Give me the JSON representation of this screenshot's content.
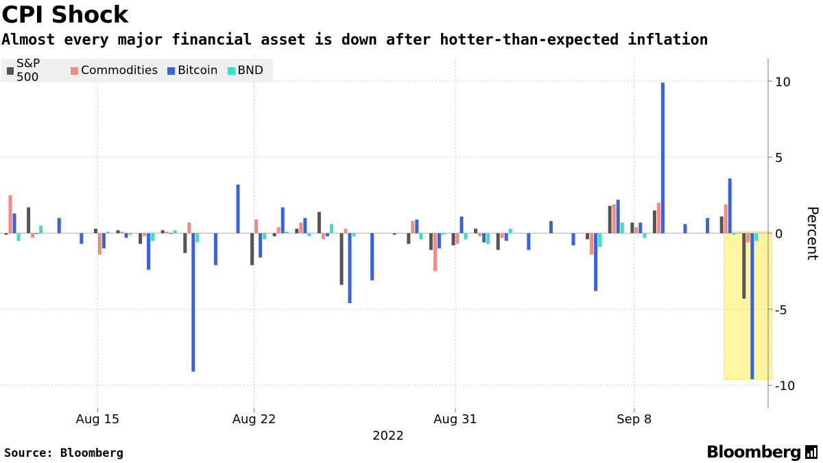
{
  "header": {
    "title": "CPI Shock",
    "subtitle": "Almost every major financial asset is down after hotter-than-expected inflation"
  },
  "footer": {
    "source": "Source: Bloomberg",
    "brand": "Bloomberg"
  },
  "chart_data": {
    "type": "bar",
    "title": "CPI Shock",
    "subtitle": "Almost every major financial asset is down after hotter-than-expected inflation",
    "ylabel": "Percent",
    "xlabel": "2022",
    "ylim": [
      -11.5,
      11.5
    ],
    "yticks": [
      10,
      5,
      0,
      -5,
      -10
    ],
    "ytick_labels": [
      "10",
      "5",
      "0",
      "-5",
      "-10"
    ],
    "x_tick_labels": [
      {
        "label": "Aug 15",
        "index": 4
      },
      {
        "label": "Aug 22",
        "index": 11
      },
      {
        "label": "Aug 31",
        "index": 20
      },
      {
        "label": "Sep 8",
        "index": 28
      }
    ],
    "year_label": "2022",
    "legend_position": "top-left",
    "grid": true,
    "categories": [
      "Aug 11",
      "Aug 12",
      "Aug 13",
      "Aug 14",
      "Aug 15",
      "Aug 16",
      "Aug 17",
      "Aug 18",
      "Aug 19",
      "Aug 20",
      "Aug 21",
      "Aug 22",
      "Aug 23",
      "Aug 24",
      "Aug 25",
      "Aug 26",
      "Aug 27",
      "Aug 28",
      "Aug 29",
      "Aug 30",
      "Aug 31",
      "Sep 1",
      "Sep 2",
      "Sep 3",
      "Sep 4",
      "Sep 5",
      "Sep 6",
      "Sep 7",
      "Sep 8",
      "Sep 9",
      "Sep 10",
      "Sep 11",
      "Sep 12",
      "Sep 13"
    ],
    "series": [
      {
        "name": "S&P 500",
        "color": "#555555",
        "values": [
          -0.1,
          1.7,
          null,
          null,
          0.3,
          0.2,
          -0.7,
          0.2,
          -1.3,
          null,
          null,
          -2.1,
          -0.2,
          0.3,
          1.4,
          -3.4,
          null,
          null,
          -0.7,
          -1.1,
          -0.8,
          0.3,
          -1.1,
          null,
          null,
          null,
          -0.4,
          1.8,
          0.7,
          1.5,
          null,
          null,
          1.1,
          -4.3
        ]
      },
      {
        "name": "Commodities",
        "color": "#f28b82",
        "values": [
          2.5,
          -0.3,
          null,
          null,
          -1.4,
          0.1,
          -0.2,
          0.1,
          0.7,
          null,
          null,
          0.9,
          0.4,
          0.7,
          -0.4,
          0.3,
          null,
          null,
          0.8,
          -2.5,
          -0.7,
          -0.2,
          -0.3,
          null,
          null,
          null,
          -1.4,
          1.9,
          0.4,
          2.0,
          null,
          null,
          1.9,
          -0.6
        ]
      },
      {
        "name": "Bitcoin",
        "color": "#3b63d8",
        "values": [
          1.3,
          0.0,
          1.0,
          -0.7,
          -1.0,
          -0.3,
          -2.4,
          0.0,
          -9.1,
          -2.1,
          3.2,
          -1.6,
          1.7,
          1.0,
          -0.2,
          -4.6,
          -3.1,
          -0.1,
          0.9,
          -1.0,
          1.1,
          -0.6,
          -0.5,
          -1.1,
          0.8,
          -0.8,
          -3.8,
          2.2,
          0.7,
          9.9,
          0.6,
          1.0,
          3.6,
          -9.6
        ]
      },
      {
        "name": "BND",
        "color": "#3ae0c0",
        "values": [
          -0.5,
          0.5,
          null,
          null,
          0.1,
          -0.1,
          -0.5,
          0.2,
          -0.6,
          null,
          null,
          -0.4,
          0.1,
          -0.2,
          0.6,
          -0.2,
          null,
          null,
          -0.4,
          -0.1,
          -0.4,
          -0.7,
          0.3,
          null,
          null,
          null,
          -0.9,
          0.7,
          -0.3,
          null,
          null,
          null,
          -0.1,
          -0.5
        ]
      }
    ],
    "highlight": {
      "from_index": 33,
      "to_index": 33,
      "color": "#fff38a"
    }
  }
}
